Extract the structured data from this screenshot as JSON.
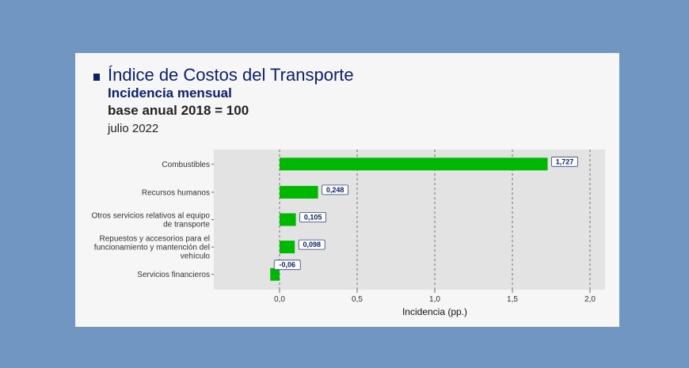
{
  "header": {
    "title": "Índice de Costos del Transporte",
    "subtitle": "Incidencia mensual",
    "base": "base anual 2018 = 100",
    "date": "julio 2022"
  },
  "colors": {
    "background": "#7196c2",
    "panel": "#f6f6f7",
    "plot_background": "#e3e3e3",
    "bar": "#00b800",
    "title": "#0a1f6e",
    "label_border": "#2b3f8f"
  },
  "chart_data": {
    "type": "bar",
    "orientation": "horizontal",
    "categories": [
      [
        "Combustibles"
      ],
      [
        "Recursos humanos"
      ],
      [
        "Otros servicios relativos al equipo",
        "de transporte"
      ],
      [
        "Repuestos y accesorios para el",
        "funcionamiento y mantención del",
        "vehículo"
      ],
      [
        "Servicios financieros"
      ]
    ],
    "values": [
      1.727,
      0.248,
      0.105,
      0.098,
      -0.06
    ],
    "value_labels": [
      "1,727",
      "0,248",
      "0,105",
      "0,098",
      "-0,06"
    ],
    "xlabel": "Incidencia (pp.)",
    "xlim": [
      -0.06,
      2.1
    ],
    "xticks": [
      0.0,
      0.5,
      1.0,
      1.5,
      2.0
    ],
    "xtick_labels": [
      "0,0",
      "0,5",
      "1,0",
      "1,5",
      "2,0"
    ],
    "grid": "vertical dashed"
  }
}
